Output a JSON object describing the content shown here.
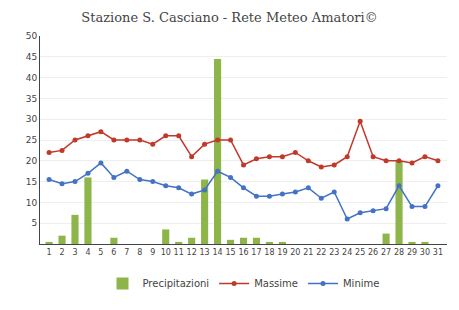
{
  "chart_data": {
    "type": "bar",
    "title": "Stazione S. Casciano - Rete Meteo Amatori©",
    "x": [
      1,
      2,
      3,
      4,
      5,
      6,
      7,
      8,
      9,
      10,
      11,
      12,
      13,
      14,
      15,
      16,
      17,
      18,
      19,
      20,
      21,
      22,
      23,
      24,
      25,
      26,
      27,
      28,
      29,
      30,
      31
    ],
    "series": [
      {
        "name": "Precipitazioni",
        "type": "bar",
        "color": "#8db54a",
        "values": [
          0.5,
          2.0,
          7.0,
          16.0,
          0.0,
          1.5,
          0.0,
          0.0,
          0.0,
          3.5,
          0.5,
          1.5,
          15.5,
          44.5,
          1.0,
          1.5,
          1.5,
          0.5,
          0.5,
          0.0,
          0.0,
          0.0,
          0.0,
          0.0,
          0.0,
          0.0,
          2.5,
          20.0,
          0.5,
          0.5,
          0.0
        ]
      },
      {
        "name": "Massime",
        "type": "line",
        "color": "#c0392b",
        "marker": "circle",
        "values": [
          22.0,
          22.5,
          25.0,
          26.0,
          27.0,
          25.0,
          25.0,
          25.0,
          24.0,
          26.0,
          26.0,
          21.0,
          24.0,
          25.0,
          25.0,
          19.0,
          20.5,
          21.0,
          21.0,
          22.0,
          20.0,
          18.5,
          19.0,
          21.0,
          29.5,
          21.0,
          20.0,
          20.0,
          19.5,
          21.0,
          20.0
        ]
      },
      {
        "name": "Minime",
        "type": "line",
        "color": "#4472c4",
        "marker": "circle",
        "values": [
          15.5,
          14.5,
          15.0,
          17.0,
          19.5,
          16.0,
          17.5,
          15.5,
          15.0,
          14.0,
          13.5,
          12.0,
          13.0,
          17.5,
          16.0,
          13.5,
          11.5,
          11.5,
          12.0,
          12.5,
          13.5,
          11.0,
          12.5,
          6.0,
          7.5,
          8.0,
          8.5,
          14.0,
          9.0,
          9.0,
          14.0
        ]
      }
    ],
    "xlim": [
      0.3,
      31.7
    ],
    "xticks": [
      1,
      2,
      3,
      4,
      5,
      6,
      7,
      8,
      9,
      10,
      11,
      12,
      13,
      14,
      15,
      16,
      17,
      18,
      19,
      20,
      21,
      22,
      23,
      24,
      25,
      26,
      27,
      28,
      29,
      30,
      31
    ],
    "ylim": [
      0,
      50
    ],
    "yticks": [
      5,
      10,
      15,
      20,
      25,
      30,
      35,
      40,
      45,
      50
    ],
    "grid": "y",
    "legend": "bottom"
  }
}
